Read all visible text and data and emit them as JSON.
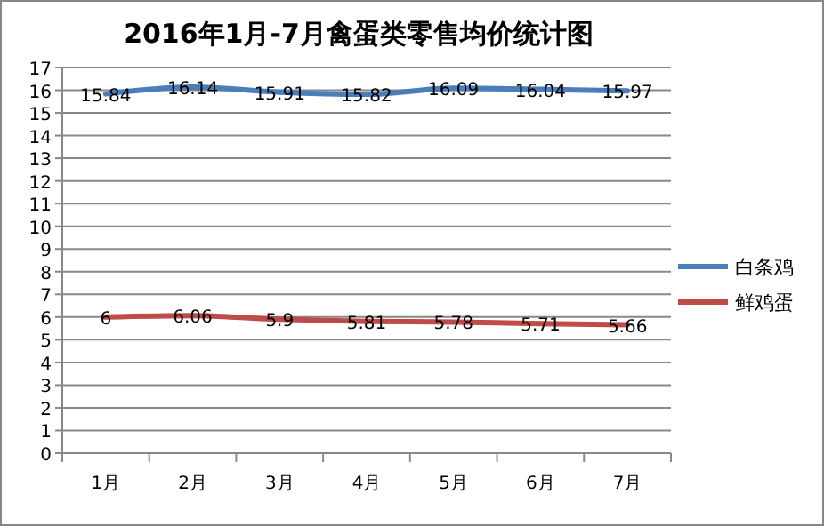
{
  "chart_data": {
    "type": "line",
    "title": "2016年1月-7月禽蛋类零售均价统计图",
    "categories": [
      "1月",
      "2月",
      "3月",
      "4月",
      "5月",
      "6月",
      "7月"
    ],
    "series": [
      {
        "name": "白条鸡",
        "color": "#4a7ebb",
        "values": [
          15.84,
          16.14,
          15.91,
          15.82,
          16.09,
          16.04,
          15.97
        ]
      },
      {
        "name": "鲜鸡蛋",
        "color": "#be4b48",
        "values": [
          6,
          6.06,
          5.9,
          5.81,
          5.78,
          5.71,
          5.66
        ]
      }
    ],
    "ylim": [
      0,
      17
    ],
    "yticks": [
      0,
      1,
      2,
      3,
      4,
      5,
      6,
      7,
      8,
      9,
      10,
      11,
      12,
      13,
      14,
      15,
      16,
      17
    ],
    "grid": "y",
    "legend": "right",
    "data_labels": true,
    "marker": "none",
    "line_style": "solid"
  }
}
